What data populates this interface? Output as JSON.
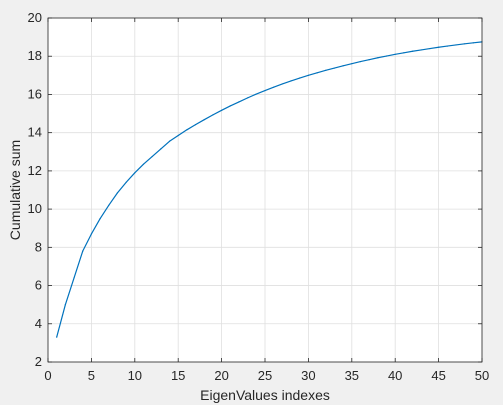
{
  "chart_data": {
    "type": "line",
    "xlabel": "EigenValues indexes",
    "ylabel": "Cumulative sum",
    "xlim": [
      0,
      50
    ],
    "ylim": [
      2,
      20
    ],
    "xticks": [
      0,
      5,
      10,
      15,
      20,
      25,
      30,
      35,
      40,
      45,
      50
    ],
    "yticks": [
      2,
      4,
      6,
      8,
      10,
      12,
      14,
      16,
      18,
      20
    ],
    "grid": true,
    "series": [
      {
        "color": "#0072bd",
        "x": [
          1,
          2,
          3,
          4,
          5,
          6,
          7,
          8,
          9,
          10,
          11,
          12,
          13,
          14,
          15,
          16,
          17,
          18,
          19,
          20,
          21,
          22,
          23,
          24,
          25,
          26,
          27,
          28,
          29,
          30,
          31,
          32,
          33,
          34,
          35,
          36,
          37,
          38,
          39,
          40,
          41,
          42,
          43,
          44,
          45,
          46,
          47,
          48,
          49,
          50
        ],
        "y": [
          3.3,
          5.0,
          6.4,
          7.8,
          8.7,
          9.5,
          10.2,
          10.85,
          11.4,
          11.9,
          12.35,
          12.75,
          13.15,
          13.55,
          13.85,
          14.15,
          14.42,
          14.68,
          14.93,
          15.17,
          15.4,
          15.61,
          15.82,
          16.02,
          16.2,
          16.38,
          16.55,
          16.71,
          16.86,
          17.0,
          17.13,
          17.26,
          17.38,
          17.5,
          17.61,
          17.72,
          17.82,
          17.92,
          18.01,
          18.1,
          18.18,
          18.26,
          18.33,
          18.4,
          18.47,
          18.53,
          18.59,
          18.65,
          18.7,
          18.75
        ]
      }
    ]
  }
}
